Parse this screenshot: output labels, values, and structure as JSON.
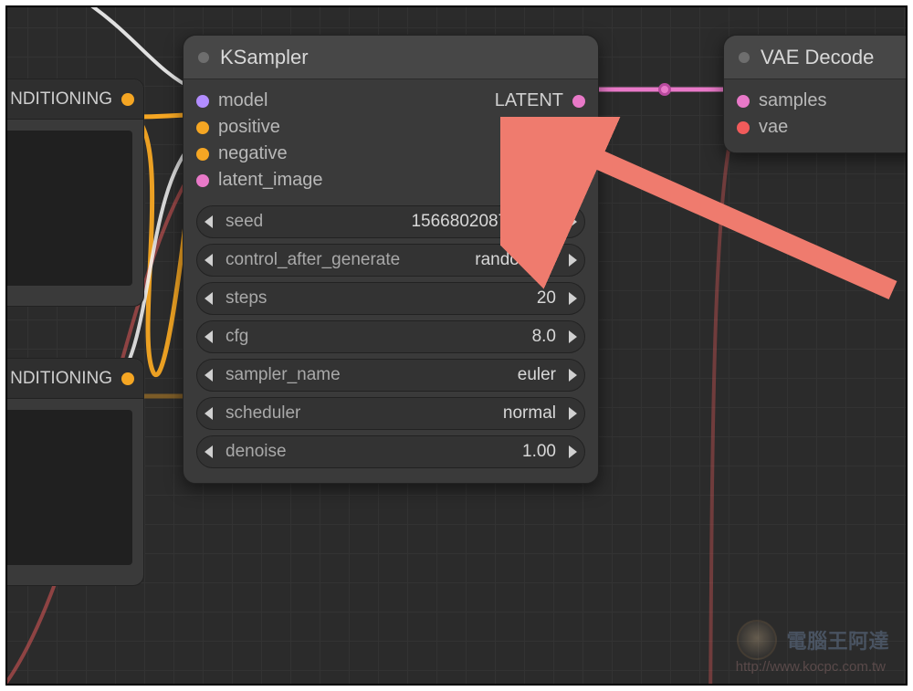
{
  "canvas": {
    "bg_color": "#2b2b2b",
    "grid_minor": "#333333",
    "grid_major": "#3a3a3a"
  },
  "colors": {
    "conditioning": "#f5a623",
    "model": "#b28dff",
    "latent": "#e879c8",
    "vae": "#f15b5b",
    "white": "#f5f5f5",
    "arrow": "#ef7b6e"
  },
  "left_nodes": {
    "top": {
      "output_label": "NDITIONING",
      "port_color": "#f5a623"
    },
    "bottom": {
      "output_label": "NDITIONING",
      "port_color": "#f5a623"
    }
  },
  "ksampler": {
    "title": "KSampler",
    "inputs": [
      {
        "name": "model",
        "color": "#b28dff"
      },
      {
        "name": "positive",
        "color": "#f5a623"
      },
      {
        "name": "negative",
        "color": "#f5a623"
      },
      {
        "name": "latent_image",
        "color": "#e879c8"
      }
    ],
    "outputs": [
      {
        "name": "LATENT",
        "color": "#e879c8"
      }
    ],
    "widgets": [
      {
        "name": "seed",
        "value": "156680208700286"
      },
      {
        "name": "control_after_generate",
        "value": "randomize"
      },
      {
        "name": "steps",
        "value": "20"
      },
      {
        "name": "cfg",
        "value": "8.0"
      },
      {
        "name": "sampler_name",
        "value": "euler"
      },
      {
        "name": "scheduler",
        "value": "normal"
      },
      {
        "name": "denoise",
        "value": "1.00"
      }
    ]
  },
  "vae_decode": {
    "title": "VAE Decode",
    "inputs": [
      {
        "name": "samples",
        "color": "#e879c8"
      },
      {
        "name": "vae",
        "color": "#f15b5b"
      }
    ]
  },
  "watermark": {
    "main": "電腦王阿達",
    "sub": "http://www.kocpc.com.tw"
  }
}
